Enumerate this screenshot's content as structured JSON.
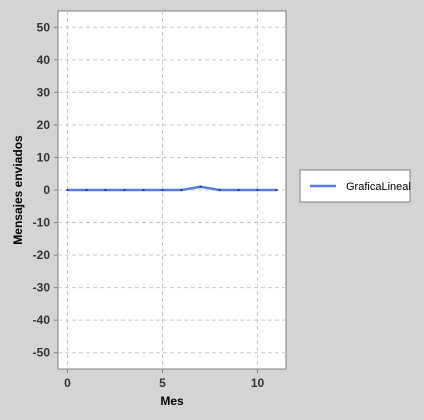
{
  "chart_data": {
    "type": "line",
    "title": "",
    "xlabel": "Mes",
    "ylabel": "Mensajes enviados",
    "xlim": [
      -0.5,
      11.5
    ],
    "ylim": [
      -55,
      55
    ],
    "x_ticks": [
      0,
      5,
      10
    ],
    "y_ticks": [
      -50,
      -40,
      -30,
      -20,
      -10,
      0,
      10,
      20,
      30,
      40,
      50
    ],
    "grid": true,
    "legend_position": "right",
    "series": [
      {
        "name": "GraficaLineal",
        "color": "#5b7fe0",
        "x": [
          0,
          1,
          2,
          3,
          4,
          5,
          6,
          7,
          8,
          9,
          10,
          11
        ],
        "y": [
          0,
          0,
          0,
          0,
          0,
          0,
          0,
          1,
          0,
          0,
          0,
          0
        ]
      }
    ]
  }
}
